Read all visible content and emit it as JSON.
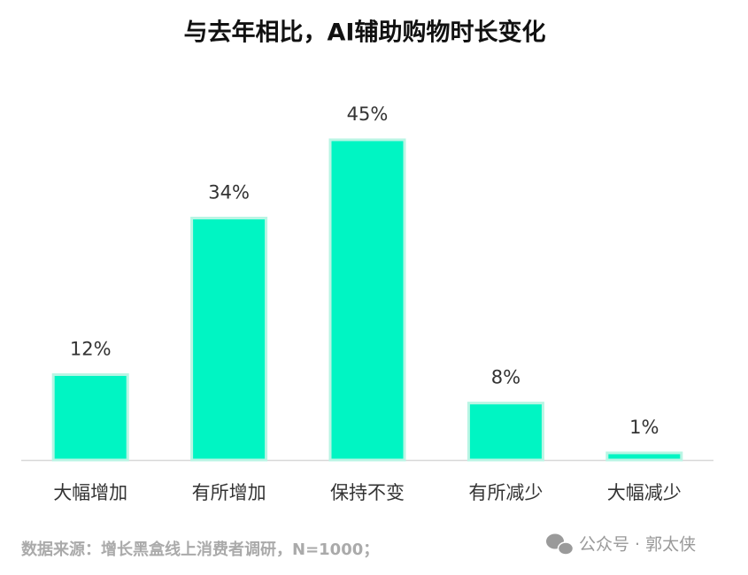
{
  "chart_data": {
    "type": "bar",
    "title": "与去年相比，AI辅助购物时长变化",
    "categories": [
      "大幅增加",
      "有所增加",
      "保持不变",
      "有所减少",
      "大幅减少"
    ],
    "values": [
      12,
      34,
      45,
      8,
      1
    ],
    "value_labels": [
      "12%",
      "34%",
      "45%",
      "8%",
      "1%"
    ],
    "color": "#00f5c3",
    "source": "数据来源：增长黑盒线上消费者调研，N=1000；",
    "watermark": "公众号 · 郭太侠"
  }
}
